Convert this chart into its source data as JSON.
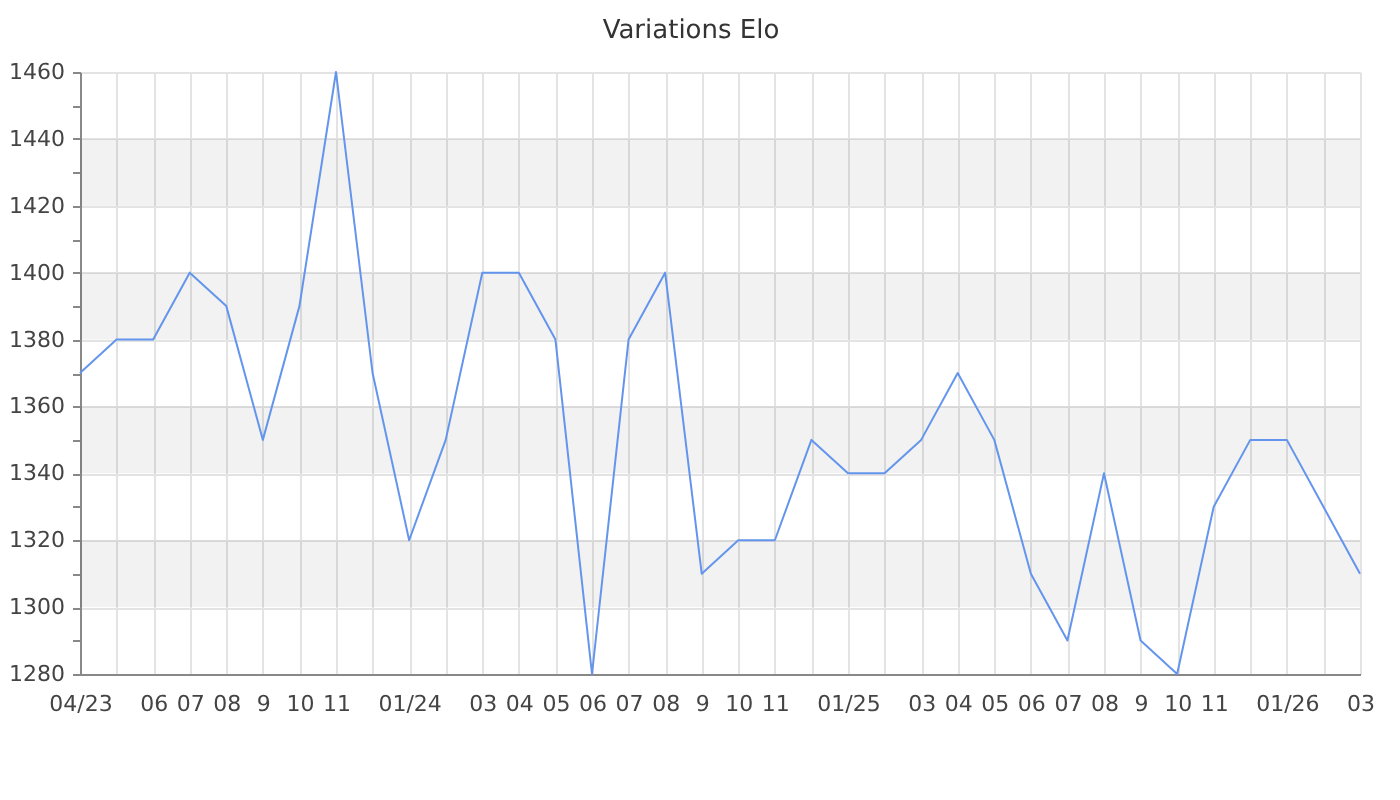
{
  "chart_data": {
    "type": "line",
    "title": "Variations Elo",
    "categories": [
      "04/23",
      null,
      "06",
      "07",
      "08",
      "9",
      "10",
      "11",
      null,
      "01/24",
      null,
      "03",
      "04",
      "05",
      "06",
      "07",
      "08",
      "9",
      "10",
      "11",
      null,
      "01/25",
      null,
      "03",
      "04",
      "05",
      "06",
      "07",
      "08",
      "9",
      "10",
      "11",
      null,
      "01/26",
      null,
      "03"
    ],
    "series": [
      {
        "color": "#6495ed",
        "values": [
          1370,
          1380,
          1380,
          1400,
          1390,
          1350,
          1390,
          1460,
          1370,
          1320,
          1350,
          1400,
          1400,
          1380,
          1280,
          1380,
          1400,
          1310,
          1320,
          1320,
          1350,
          1340,
          1340,
          1350,
          1370,
          1350,
          1310,
          1290,
          1340,
          1290,
          1280,
          1330,
          1350,
          1350,
          1330,
          1310
        ]
      }
    ],
    "ylim": [
      1280,
      1460
    ],
    "yticks": [
      1280,
      {
        "value": 1290,
        "label": null
      },
      1300,
      {
        "value": 1310,
        "label": null
      },
      1320,
      {
        "value": 1330,
        "label": null
      },
      1340,
      {
        "value": 1350,
        "label": null
      },
      1360,
      {
        "value": 1370,
        "label": null
      },
      1380,
      {
        "value": 1390,
        "label": null
      },
      1400,
      {
        "value": 1410,
        "label": null
      },
      1420,
      {
        "value": 1430,
        "label": null
      },
      1440,
      {
        "value": 1450,
        "label": null
      },
      1460
    ],
    "bands": [
      {
        "axis": "y",
        "from": 1300,
        "to": 1320,
        "color": "#f2f2f2"
      },
      {
        "axis": "y",
        "from": 1340,
        "to": 1360,
        "color": "#f2f2f2"
      },
      {
        "axis": "y",
        "from": 1380,
        "to": 1400,
        "color": "#f2f2f2"
      },
      {
        "axis": "y",
        "from": 1420,
        "to": 1440,
        "color": "#f2f2f2"
      }
    ],
    "grid": true,
    "line_style": "solid"
  }
}
